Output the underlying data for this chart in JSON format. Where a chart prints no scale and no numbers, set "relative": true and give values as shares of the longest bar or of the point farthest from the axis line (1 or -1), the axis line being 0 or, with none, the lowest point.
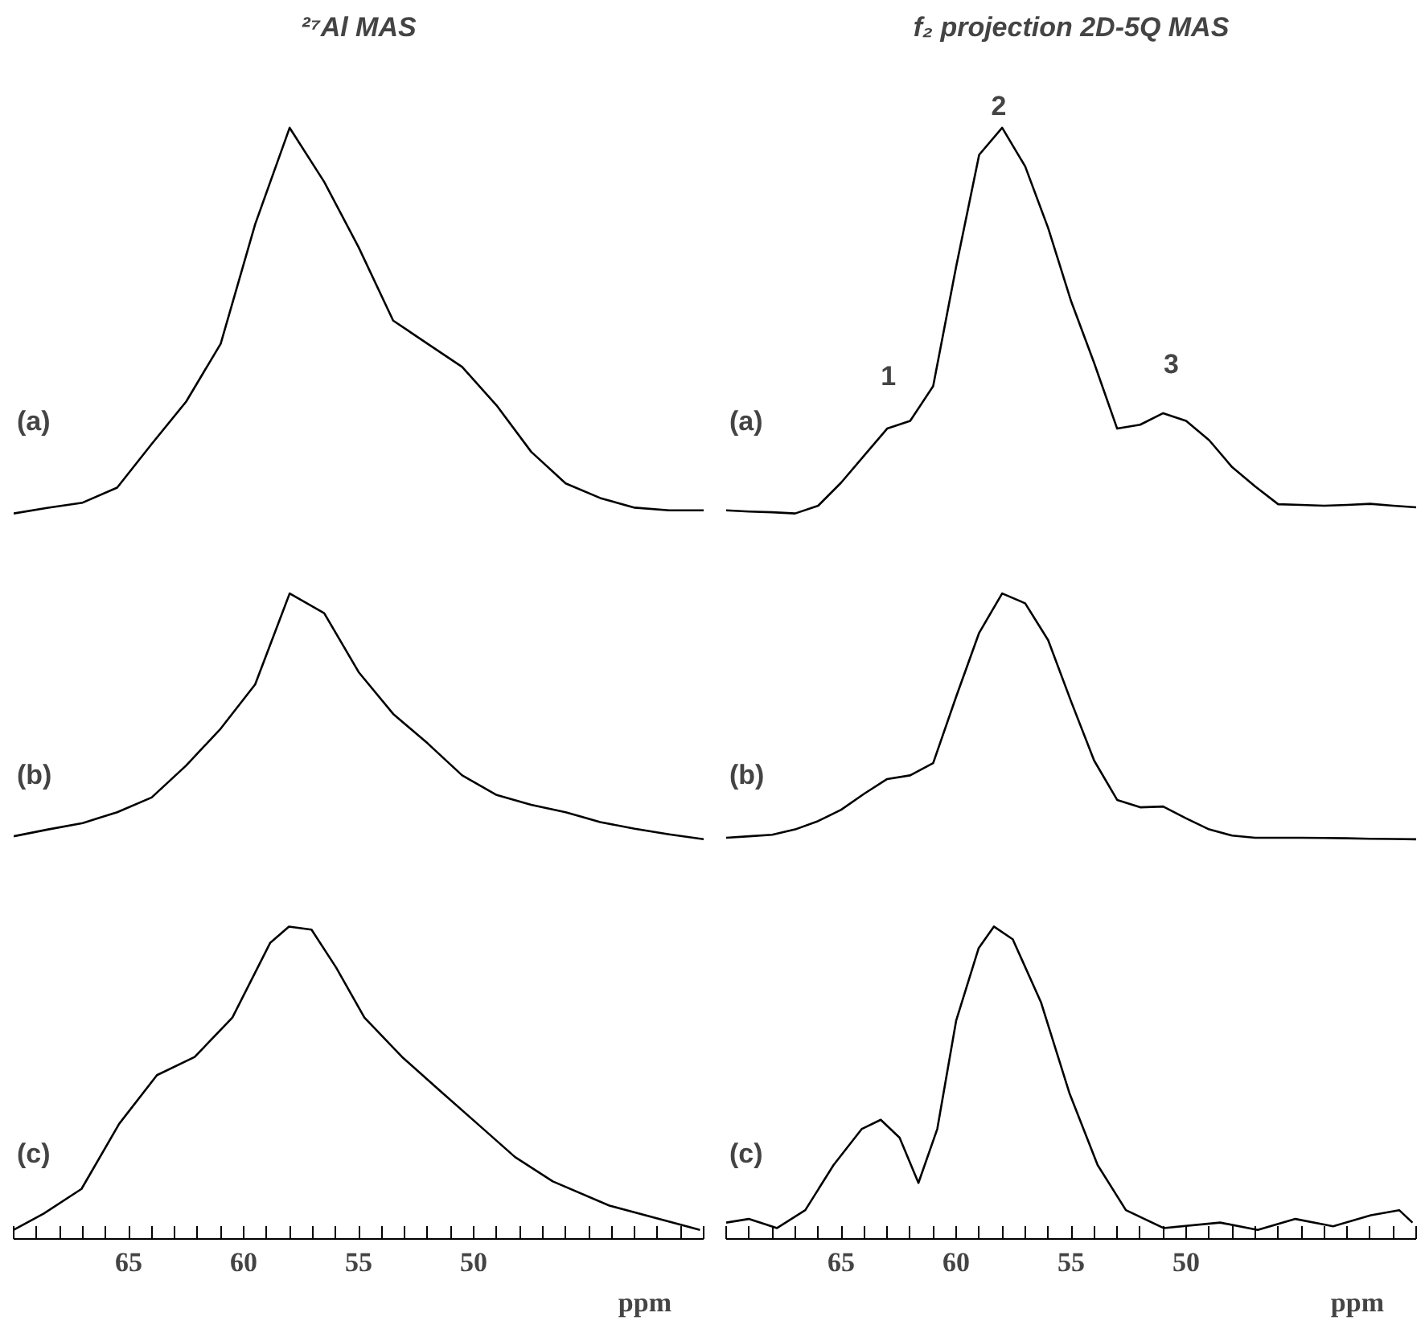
{
  "chart_data": [
    {
      "type": "line",
      "title": "²⁷Al MAS",
      "annotations": [
        "(a)"
      ],
      "tick_labels": false,
      "relative": true,
      "color": "#000000",
      "categories": [
        null,
        null,
        null,
        null,
        null,
        null,
        null,
        null,
        null,
        null,
        null,
        null,
        null,
        null,
        null,
        null,
        null,
        null,
        null,
        null,
        null
      ],
      "values": [
        0,
        0.015,
        0.028,
        0.067,
        0.18,
        0.29,
        0.44,
        0.75,
        1.0,
        0.86,
        0.69,
        0.5,
        0.44,
        0.38,
        0.28,
        0.16,
        0.078,
        0.04,
        0.015,
        0.008,
        0.008
      ]
    },
    {
      "type": "line",
      "title": "f₂ projection 2D-5Q MAS",
      "annotations": [
        "(a)",
        "1",
        "2",
        "3"
      ],
      "tick_labels": false,
      "relative": true,
      "color": "#000000",
      "categories": [
        null,
        null,
        null,
        null,
        null,
        null,
        null,
        null,
        null,
        null,
        null,
        null,
        null,
        null,
        null,
        null,
        null,
        null,
        null,
        null,
        null,
        null,
        null,
        null,
        null,
        null,
        null,
        null,
        null,
        null,
        null
      ],
      "values": [
        0.008,
        0.005,
        0.003,
        0,
        0.02,
        0.08,
        0.15,
        0.22,
        0.24,
        0.33,
        0.64,
        0.93,
        1.0,
        0.9,
        0.74,
        0.55,
        0.39,
        0.22,
        0.23,
        0.26,
        0.24,
        0.19,
        0.12,
        0.07,
        0.024,
        0.022,
        0.02,
        0.022,
        0.025,
        0.02,
        0.016
      ]
    },
    {
      "type": "line",
      "annotations": [
        "(b)"
      ],
      "tick_labels": false,
      "relative": true,
      "color": "#000000",
      "categories": [
        null,
        null,
        null,
        null,
        null,
        null,
        null,
        null,
        null,
        null,
        null,
        null,
        null,
        null,
        null,
        null,
        null,
        null,
        null,
        null,
        null
      ],
      "values": [
        0.012,
        0.04,
        0.066,
        0.11,
        0.17,
        0.3,
        0.45,
        0.63,
        1.0,
        0.92,
        0.68,
        0.51,
        0.39,
        0.26,
        0.18,
        0.14,
        0.11,
        0.07,
        0.043,
        0.02,
        0
      ]
    },
    {
      "type": "line",
      "annotations": [
        "(b)"
      ],
      "tick_labels": false,
      "relative": true,
      "color": "#000000",
      "categories": [
        null,
        null,
        null,
        null,
        null,
        null,
        null,
        null,
        null,
        null,
        null,
        null,
        null,
        null,
        null,
        null,
        null,
        null,
        null,
        null,
        null,
        null,
        null,
        null,
        null,
        null,
        null,
        null,
        null,
        null,
        null
      ],
      "values": [
        0.006,
        0.012,
        0.018,
        0.04,
        0.074,
        0.12,
        0.185,
        0.245,
        0.26,
        0.31,
        0.58,
        0.84,
        1.0,
        0.96,
        0.81,
        0.56,
        0.32,
        0.16,
        0.13,
        0.133,
        0.085,
        0.04,
        0.015,
        0.006,
        0.006,
        0.006,
        0.005,
        0.004,
        0.002,
        0.001,
        0
      ]
    },
    {
      "type": "line",
      "annotations": [
        "(c)"
      ],
      "tick_labels": "x",
      "relative": true,
      "xlim": [
        70,
        40
      ],
      "xlabel": "ppm",
      "color": "#000000",
      "xticks": [
        {
          "value": 70,
          "label": null
        },
        {
          "value": 69,
          "label": null
        },
        {
          "value": 68,
          "label": null
        },
        {
          "value": 67,
          "label": null
        },
        {
          "value": 66,
          "label": null
        },
        65,
        {
          "value": 64,
          "label": null
        },
        {
          "value": 63,
          "label": null
        },
        {
          "value": 62,
          "label": null
        },
        {
          "value": 61,
          "label": null
        },
        60,
        {
          "value": 59,
          "label": null
        },
        {
          "value": 58,
          "label": null
        },
        {
          "value": 57,
          "label": null
        },
        {
          "value": 56,
          "label": null
        },
        55,
        {
          "value": 54,
          "label": null
        },
        {
          "value": 53,
          "label": null
        },
        {
          "value": 52,
          "label": null
        },
        {
          "value": 51,
          "label": null
        },
        50,
        {
          "value": 49,
          "label": null
        },
        {
          "value": 48,
          "label": null
        },
        {
          "value": 47,
          "label": null
        },
        {
          "value": 46,
          "label": null
        },
        {
          "value": 45,
          "label": null
        },
        {
          "value": 44,
          "label": null
        },
        {
          "value": 43,
          "label": null
        },
        {
          "value": 42,
          "label": null
        },
        {
          "value": 41,
          "label": null
        },
        {
          "value": 40,
          "label": null
        }
      ],
      "x": [
        70.0,
        68.69,
        67.05,
        65.41,
        63.77,
        62.13,
        60.49,
        58.85,
        58.03,
        57.05,
        55.98,
        54.75,
        53.11,
        51.48,
        49.84,
        48.2,
        46.56,
        44.1,
        40.16
      ],
      "values": [
        0,
        0.054,
        0.135,
        0.35,
        0.51,
        0.57,
        0.7,
        0.946,
        1.0,
        0.99,
        0.865,
        0.7,
        0.57,
        0.46,
        0.35,
        0.24,
        0.16,
        0.08,
        0
      ]
    },
    {
      "type": "line",
      "annotations": [
        "(c)"
      ],
      "tick_labels": "x",
      "relative": true,
      "xlim": [
        70,
        40
      ],
      "xlabel": "ppm",
      "color": "#000000",
      "xticks": [
        {
          "value": 70,
          "label": null
        },
        {
          "value": 69,
          "label": null
        },
        {
          "value": 68,
          "label": null
        },
        {
          "value": 67,
          "label": null
        },
        {
          "value": 66,
          "label": null
        },
        65,
        {
          "value": 64,
          "label": null
        },
        {
          "value": 63,
          "label": null
        },
        {
          "value": 62,
          "label": null
        },
        {
          "value": 61,
          "label": null
        },
        60,
        {
          "value": 59,
          "label": null
        },
        {
          "value": 58,
          "label": null
        },
        {
          "value": 57,
          "label": null
        },
        {
          "value": 56,
          "label": null
        },
        55,
        {
          "value": 54,
          "label": null
        },
        {
          "value": 53,
          "label": null
        },
        {
          "value": 52,
          "label": null
        },
        {
          "value": 51,
          "label": null
        },
        50,
        {
          "value": 49,
          "label": null
        },
        {
          "value": 48,
          "label": null
        },
        {
          "value": 47,
          "label": null
        },
        {
          "value": 46,
          "label": null
        },
        {
          "value": 45,
          "label": null
        },
        {
          "value": 44,
          "label": null
        },
        {
          "value": 43,
          "label": null
        },
        {
          "value": 42,
          "label": null
        },
        {
          "value": 41,
          "label": null
        },
        {
          "value": 40,
          "label": null
        }
      ],
      "x": [
        70.0,
        69.02,
        67.79,
        66.56,
        65.33,
        64.1,
        63.28,
        62.46,
        61.64,
        60.82,
        60.0,
        59.02,
        58.36,
        57.54,
        56.31,
        55.08,
        53.85,
        52.62,
        50.98,
        48.52,
        46.89,
        45.25,
        43.61,
        41.97,
        40.74,
        40.16
      ],
      "values": [
        0.024,
        0.036,
        0.006,
        0.065,
        0.214,
        0.333,
        0.363,
        0.304,
        0.155,
        0.333,
        0.69,
        0.929,
        1.0,
        0.958,
        0.75,
        0.452,
        0.214,
        0.065,
        0.006,
        0.024,
        0,
        0.036,
        0.012,
        0.048,
        0.065,
        0.024
      ]
    }
  ]
}
